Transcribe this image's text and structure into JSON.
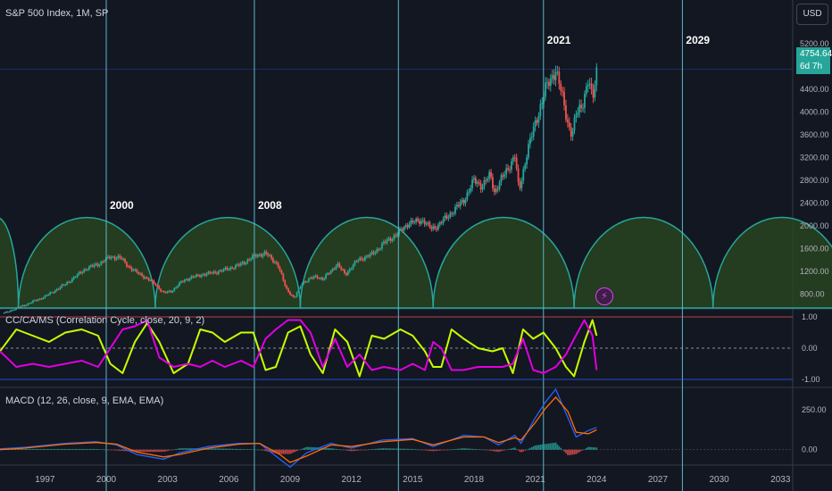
{
  "header": {
    "main_title": "S&P 500 Index, 1M, SP",
    "currency_button": "USD",
    "last_price": "4754.64",
    "countdown": "6d 7h",
    "flash_icon": "lightning-icon"
  },
  "indicators": {
    "cc_title": "CC/CA/MS (Correlation Cycle, close, 20, 9, 2)",
    "macd_title": "MACD (12, 26, close, 9, EMA, EMA)"
  },
  "colors": {
    "background": "#131722",
    "up": "#26a69a",
    "down": "#ef5350",
    "cycle_line": "#5ab9c9",
    "arc_stroke": "#26a69a",
    "arc_fill": "#2b4a1f",
    "cc_line1": "#c6ff00",
    "cc_line2": "#e000e0",
    "macd_line": "#2962ff",
    "signal_line": "#ff6d00"
  },
  "chart_data": {
    "type": "candlestick",
    "symbol": "S&P 500 Index",
    "interval": "1M",
    "x_axis_ticks": [
      "1997",
      "2000",
      "2003",
      "2006",
      "2009",
      "2012",
      "2015",
      "2018",
      "2021",
      "2024",
      "2027",
      "2030",
      "2033"
    ],
    "x_range": [
      1994.8,
      2033.6
    ],
    "price_axis_ticks": [
      "800.00",
      "1200.00",
      "1600.00",
      "2000.00",
      "2400.00",
      "2800.00",
      "3200.00",
      "3600.00",
      "4000.00",
      "4400.00",
      "5200.00"
    ],
    "price_range": [
      560,
      5560
    ],
    "cycle_markers": [
      {
        "label": "2000",
        "year": 2000.0
      },
      {
        "label": "2008",
        "year": 2007.25
      },
      {
        "label": "2021",
        "year": 2021.4
      },
      {
        "label": "2029",
        "year": 2028.2
      }
    ],
    "extra_cycle_line_year": 2014.3,
    "cycle_arcs": [
      {
        "start": 1993.6,
        "end": 1995.7
      },
      {
        "start": 1995.7,
        "end": 2002.4
      },
      {
        "start": 2002.4,
        "end": 2009.5
      },
      {
        "start": 2009.5,
        "end": 2016.0
      },
      {
        "start": 2016.0,
        "end": 2022.9
      },
      {
        "start": 2022.9,
        "end": 2029.7
      },
      {
        "start": 2029.7,
        "end": 2036.4
      }
    ],
    "price_series": [
      [
        1995.0,
        470
      ],
      [
        1996.0,
        610
      ],
      [
        1997.0,
        760
      ],
      [
        1998.0,
        980
      ],
      [
        1999.0,
        1250
      ],
      [
        1999.6,
        1330
      ],
      [
        2000.2,
        1460
      ],
      [
        2000.7,
        1440
      ],
      [
        2001.2,
        1250
      ],
      [
        2001.8,
        1120
      ],
      [
        2002.4,
        980
      ],
      [
        2002.8,
        820
      ],
      [
        2003.2,
        860
      ],
      [
        2003.8,
        1050
      ],
      [
        2004.5,
        1130
      ],
      [
        2005.5,
        1200
      ],
      [
        2006.5,
        1310
      ],
      [
        2007.3,
        1480
      ],
      [
        2007.8,
        1520
      ],
      [
        2008.4,
        1320
      ],
      [
        2008.8,
        900
      ],
      [
        2009.2,
        730
      ],
      [
        2009.6,
        1010
      ],
      [
        2010.3,
        1120
      ],
      [
        2010.6,
        1060
      ],
      [
        2011.3,
        1330
      ],
      [
        2011.7,
        1150
      ],
      [
        2012.3,
        1400
      ],
      [
        2013.0,
        1500
      ],
      [
        2013.6,
        1700
      ],
      [
        2014.2,
        1850
      ],
      [
        2014.8,
        2050
      ],
      [
        2015.5,
        2100
      ],
      [
        2015.9,
        1950
      ],
      [
        2016.2,
        2000
      ],
      [
        2016.8,
        2200
      ],
      [
        2017.5,
        2450
      ],
      [
        2018.0,
        2800
      ],
      [
        2018.4,
        2700
      ],
      [
        2018.8,
        2900
      ],
      [
        2019.0,
        2600
      ],
      [
        2019.6,
        2980
      ],
      [
        2020.0,
        3230
      ],
      [
        2020.2,
        2600
      ],
      [
        2020.6,
        3300
      ],
      [
        2021.0,
        3800
      ],
      [
        2021.5,
        4400
      ],
      [
        2022.0,
        4750
      ],
      [
        2022.3,
        4300
      ],
      [
        2022.6,
        3800
      ],
      [
        2022.8,
        3600
      ],
      [
        2023.0,
        3950
      ],
      [
        2023.3,
        4150
      ],
      [
        2023.6,
        4550
      ],
      [
        2023.8,
        4200
      ],
      [
        2024.0,
        4754
      ]
    ],
    "cc_oscillator": {
      "y_axis_ticks": [
        "1.00",
        "0.00",
        "-1.00"
      ],
      "y_range": [
        -1,
        1
      ],
      "series": [
        {
          "name": "",
          "color": "#c6ff00",
          "points": [
            [
              1994.8,
              -0.1
            ],
            [
              1995.6,
              0.6
            ],
            [
              1996.4,
              0.4
            ],
            [
              1997.2,
              0.2
            ],
            [
              1998.0,
              0.5
            ],
            [
              1998.8,
              0.6
            ],
            [
              1999.6,
              0.4
            ],
            [
              2000.2,
              -0.5
            ],
            [
              2000.8,
              -0.8
            ],
            [
              2001.4,
              0.2
            ],
            [
              2002.0,
              0.8
            ],
            [
              2002.6,
              0.2
            ],
            [
              2003.3,
              -0.8
            ],
            [
              2004.0,
              -0.5
            ],
            [
              2004.6,
              0.6
            ],
            [
              2005.2,
              0.5
            ],
            [
              2005.8,
              0.2
            ],
            [
              2006.6,
              0.5
            ],
            [
              2007.2,
              0.5
            ],
            [
              2007.8,
              -0.7
            ],
            [
              2008.3,
              -0.6
            ],
            [
              2008.9,
              0.5
            ],
            [
              2009.5,
              0.7
            ],
            [
              2010.0,
              -0.2
            ],
            [
              2010.6,
              -0.8
            ],
            [
              2011.2,
              0.6
            ],
            [
              2011.8,
              0.2
            ],
            [
              2012.4,
              -0.9
            ],
            [
              2013.0,
              0.4
            ],
            [
              2013.6,
              0.3
            ],
            [
              2014.4,
              0.6
            ],
            [
              2015.0,
              0.4
            ],
            [
              2015.6,
              -0.1
            ],
            [
              2016.0,
              -0.6
            ],
            [
              2016.4,
              -0.6
            ],
            [
              2016.9,
              0.6
            ],
            [
              2017.5,
              0.3
            ],
            [
              2018.2,
              0.0
            ],
            [
              2018.9,
              -0.1
            ],
            [
              2019.4,
              0.0
            ],
            [
              2019.9,
              -0.8
            ],
            [
              2020.4,
              0.6
            ],
            [
              2020.9,
              0.3
            ],
            [
              2021.4,
              0.5
            ],
            [
              2022.0,
              0.0
            ],
            [
              2022.5,
              -0.6
            ],
            [
              2022.9,
              -0.9
            ],
            [
              2023.4,
              0.2
            ],
            [
              2023.8,
              0.9
            ],
            [
              2024.0,
              0.4
            ]
          ]
        },
        {
          "name": "",
          "color": "#e000e0",
          "points": [
            [
              1994.8,
              -0.1
            ],
            [
              1995.6,
              -0.6
            ],
            [
              1996.4,
              -0.5
            ],
            [
              1997.2,
              -0.6
            ],
            [
              1998.0,
              -0.5
            ],
            [
              1998.8,
              -0.4
            ],
            [
              1999.6,
              -0.6
            ],
            [
              2000.2,
              0.0
            ],
            [
              2000.8,
              0.6
            ],
            [
              2001.4,
              0.7
            ],
            [
              2002.0,
              0.9
            ],
            [
              2002.6,
              -0.3
            ],
            [
              2003.3,
              -0.6
            ],
            [
              2004.0,
              -0.5
            ],
            [
              2004.6,
              -0.6
            ],
            [
              2005.2,
              -0.4
            ],
            [
              2005.8,
              -0.6
            ],
            [
              2006.6,
              -0.4
            ],
            [
              2007.2,
              -0.6
            ],
            [
              2007.8,
              0.3
            ],
            [
              2008.3,
              0.6
            ],
            [
              2008.9,
              0.9
            ],
            [
              2009.5,
              0.9
            ],
            [
              2010.0,
              0.5
            ],
            [
              2010.6,
              -0.6
            ],
            [
              2011.2,
              0.3
            ],
            [
              2011.8,
              -0.6
            ],
            [
              2012.4,
              -0.2
            ],
            [
              2013.0,
              -0.7
            ],
            [
              2013.6,
              -0.6
            ],
            [
              2014.4,
              -0.7
            ],
            [
              2015.0,
              -0.5
            ],
            [
              2015.6,
              -0.7
            ],
            [
              2016.0,
              0.2
            ],
            [
              2016.4,
              0.0
            ],
            [
              2016.9,
              -0.7
            ],
            [
              2017.5,
              -0.7
            ],
            [
              2018.2,
              -0.6
            ],
            [
              2018.9,
              -0.6
            ],
            [
              2019.4,
              -0.6
            ],
            [
              2019.9,
              -0.5
            ],
            [
              2020.4,
              0.3
            ],
            [
              2020.9,
              -0.7
            ],
            [
              2021.4,
              -0.8
            ],
            [
              2022.0,
              -0.6
            ],
            [
              2022.5,
              -0.2
            ],
            [
              2022.9,
              0.3
            ],
            [
              2023.4,
              0.9
            ],
            [
              2023.8,
              0.4
            ],
            [
              2024.0,
              -0.7
            ]
          ]
        }
      ]
    },
    "macd": {
      "y_axis_ticks": [
        "250.00",
        "0.00"
      ],
      "y_range": [
        -80,
        380
      ],
      "macd_line": [
        [
          1994.8,
          5
        ],
        [
          1996.0,
          15
        ],
        [
          1998.0,
          40
        ],
        [
          1999.5,
          50
        ],
        [
          2000.5,
          30
        ],
        [
          2001.5,
          -30
        ],
        [
          2002.8,
          -60
        ],
        [
          2003.6,
          -20
        ],
        [
          2005.0,
          20
        ],
        [
          2006.5,
          40
        ],
        [
          2007.5,
          40
        ],
        [
          2008.5,
          -60
        ],
        [
          2009.0,
          -110
        ],
        [
          2009.8,
          -20
        ],
        [
          2011.0,
          40
        ],
        [
          2012.0,
          10
        ],
        [
          2013.5,
          60
        ],
        [
          2015.0,
          70
        ],
        [
          2016.0,
          20
        ],
        [
          2017.5,
          90
        ],
        [
          2018.5,
          80
        ],
        [
          2019.2,
          30
        ],
        [
          2020.0,
          90
        ],
        [
          2020.3,
          40
        ],
        [
          2021.0,
          200
        ],
        [
          2021.5,
          300
        ],
        [
          2022.0,
          380
        ],
        [
          2022.6,
          200
        ],
        [
          2023.0,
          80
        ],
        [
          2023.6,
          120
        ],
        [
          2024.0,
          140
        ]
      ],
      "signal_line": [
        [
          1994.8,
          0
        ],
        [
          1996.0,
          10
        ],
        [
          1998.0,
          35
        ],
        [
          1999.5,
          45
        ],
        [
          2000.5,
          35
        ],
        [
          2001.5,
          -15
        ],
        [
          2002.8,
          -45
        ],
        [
          2003.6,
          -30
        ],
        [
          2005.0,
          10
        ],
        [
          2006.5,
          35
        ],
        [
          2007.5,
          40
        ],
        [
          2008.5,
          -30
        ],
        [
          2009.0,
          -80
        ],
        [
          2009.8,
          -40
        ],
        [
          2011.0,
          30
        ],
        [
          2012.0,
          20
        ],
        [
          2013.5,
          50
        ],
        [
          2015.0,
          65
        ],
        [
          2016.0,
          30
        ],
        [
          2017.5,
          80
        ],
        [
          2018.5,
          80
        ],
        [
          2019.2,
          45
        ],
        [
          2020.0,
          75
        ],
        [
          2020.3,
          60
        ],
        [
          2021.0,
          170
        ],
        [
          2021.5,
          260
        ],
        [
          2022.0,
          330
        ],
        [
          2022.6,
          240
        ],
        [
          2023.0,
          110
        ],
        [
          2023.6,
          100
        ],
        [
          2024.0,
          125
        ]
      ]
    }
  }
}
